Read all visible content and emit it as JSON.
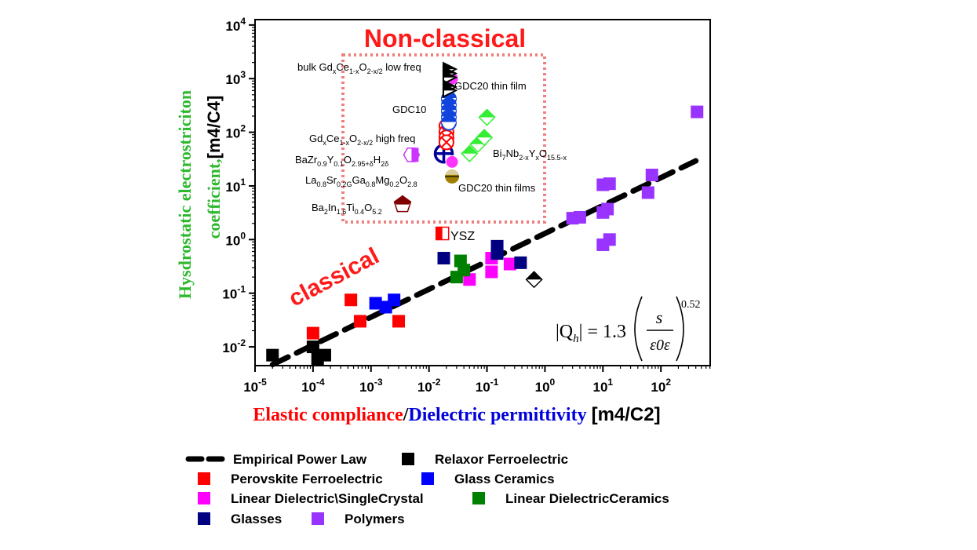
{
  "chart_data": {
    "type": "scatter",
    "x_scale": "log",
    "y_scale": "log",
    "xlim_exp": [
      -5,
      2.85
    ],
    "ylim_exp": [
      -2.35,
      4.1
    ],
    "x_tick_exponents": [
      -5,
      -4,
      -3,
      -2,
      -1,
      0,
      1,
      2
    ],
    "y_tick_exponents": [
      -2,
      -1,
      0,
      1,
      2,
      3,
      4
    ],
    "x_tick_labels": [
      "10-5",
      "10-4",
      "10-3",
      "10-2",
      "10-1",
      "100",
      "101",
      "102"
    ],
    "y_tick_labels": [
      "10-2",
      "10-1",
      "100",
      "101",
      "102",
      "103",
      "104"
    ],
    "xlabel": {
      "part1": "Elastic compliance",
      "slash": "/",
      "part2": "Dielectric permittivity",
      "units": "[m4/C2]"
    },
    "ylabel": {
      "line1": "Hysdrostatic electrostriciton",
      "line2": "coefficient,",
      "units": "[m4/C4]"
    },
    "regions": {
      "nonclassical": "Non-classical",
      "classical": "classical"
    },
    "formula": "|Qh| = 1.3 (s / (ε0 ε))^0.52",
    "formula_parts": {
      "lhs": "|Q",
      "lhs_sub": "h",
      "lhs_close": "| = 1.3",
      "num": "s",
      "den": "ε0ε",
      "exponent": "0.52"
    },
    "power_law": {
      "coefficient": 1.3,
      "exponent": 0.52,
      "x_range": [
        2e-05,
        400
      ]
    },
    "series": [
      {
        "name": "Relaxor Ferroelectric",
        "color": "#000000",
        "points": [
          [
            2e-05,
            0.007
          ],
          [
            0.0001,
            0.01
          ],
          [
            0.00012,
            0.006
          ],
          [
            0.00016,
            0.007
          ]
        ]
      },
      {
        "name": "Perovskite Ferroelectric",
        "color": "#ff0000",
        "points": [
          [
            0.0001,
            0.018
          ],
          [
            0.00045,
            0.075
          ],
          [
            0.00065,
            0.03
          ],
          [
            0.003,
            0.03
          ]
        ]
      },
      {
        "name": "Glass Ceramics",
        "color": "#0000ff",
        "points": [
          [
            0.0012,
            0.065
          ],
          [
            0.0018,
            0.055
          ],
          [
            0.0025,
            0.075
          ]
        ]
      },
      {
        "name": "Linear Dielectric\\SingleCrystal",
        "color": "#ff00ff",
        "points": [
          [
            0.05,
            0.18
          ],
          [
            0.12,
            0.45
          ],
          [
            0.12,
            0.25
          ],
          [
            0.25,
            0.35
          ]
        ]
      },
      {
        "name": "Linear DielectricCeramics",
        "color": "#008000",
        "points": [
          [
            0.03,
            0.2
          ],
          [
            0.035,
            0.4
          ],
          [
            0.04,
            0.27
          ]
        ]
      },
      {
        "name": "Glasses",
        "color": "#000080",
        "points": [
          [
            0.018,
            0.45
          ],
          [
            0.15,
            0.75
          ],
          [
            0.15,
            0.55
          ],
          [
            0.38,
            0.37
          ]
        ]
      },
      {
        "name": "Polymers",
        "color": "#9933ff",
        "points": [
          [
            3.0,
            2.5
          ],
          [
            4.0,
            2.6
          ],
          [
            10,
            10.5
          ],
          [
            13,
            11
          ],
          [
            10,
            3.2
          ],
          [
            12,
            3.7
          ],
          [
            10,
            0.8
          ],
          [
            13,
            1.0
          ],
          [
            60,
            7.5
          ],
          [
            70,
            16
          ],
          [
            420,
            240
          ]
        ]
      }
    ],
    "annotated_points": [
      {
        "label": "Bi7Nb2-xYxO15.5-x",
        "color": "#33ee33",
        "marker": "diamond",
        "points": [
          [
            0.1,
            190
          ],
          [
            0.05,
            40
          ],
          [
            0.07,
            60
          ],
          [
            0.09,
            80
          ]
        ]
      },
      {
        "label": "YSZ",
        "color": "#ff0000",
        "marker": "half-square",
        "points": [
          [
            0.017,
            1.3
          ]
        ]
      },
      {
        "label": "Ba2In1.6Ti0.4O5.2",
        "color": "#800000",
        "marker": "pentagon",
        "points": [
          [
            0.0035,
            4.5
          ]
        ]
      },
      {
        "label": "La0.8Sr0.2Ga0.8Mg0.2O2.8",
        "color": "#a08000",
        "marker": "half-circle",
        "points": [
          [
            0.025,
            15
          ]
        ]
      },
      {
        "label": "BaZr0.9Y0.1O2.95+δH2δ",
        "color": "#cc33ff",
        "marker": "hexagon",
        "points": [
          [
            0.005,
            38
          ]
        ]
      },
      {
        "label": "GDC20 thin films",
        "color": "#000099",
        "marker": "circle-plus",
        "points": [
          [
            0.018,
            40
          ]
        ]
      },
      {
        "label": "GdxCe1-xO2-x/2 high freq",
        "color": "#ff0000",
        "marker": "cross-circle",
        "points": [
          [
            0.02,
            130
          ],
          [
            0.02,
            100
          ],
          [
            0.02,
            80
          ],
          [
            0.02,
            65
          ]
        ]
      },
      {
        "label": "GDC10",
        "color": "#1144dd",
        "marker": "circle-line",
        "points": [
          [
            0.022,
            420
          ],
          [
            0.022,
            320
          ],
          [
            0.022,
            250
          ],
          [
            0.022,
            190
          ],
          [
            0.022,
            150
          ]
        ]
      },
      {
        "label": "GDC20 thin film",
        "color": "#ff33ff",
        "marker": "circle",
        "points": [
          [
            0.025,
            1000
          ],
          [
            0.025,
            28
          ]
        ]
      },
      {
        "label": "bulk GdxCe1-xO2-x/2 low freq",
        "color": "#000000",
        "marker": "triangle",
        "points": [
          [
            0.022,
            1500
          ],
          [
            0.022,
            1250
          ],
          [
            0.022,
            1050
          ],
          [
            0.022,
            700
          ],
          [
            0.022,
            600
          ]
        ]
      },
      {
        "label": "",
        "color": "#000000",
        "marker": "half-diamond",
        "points": [
          [
            0.65,
            0.18
          ]
        ]
      }
    ],
    "point_labels": {
      "bulk": {
        "pre": "bulk Gd",
        "s1": "x",
        "m1": "Ce",
        "s2": "1-x",
        "m2": "O",
        "s3": "2-x/2",
        "post": " low freq"
      },
      "gdc20film": "GDC20 thin film",
      "gdc10": "GDC10",
      "highfreq": {
        "pre": "Gd",
        "s1": "x",
        "m1": "Ce",
        "s2": "1-x",
        "m2": "O",
        "s3": "2-x/2",
        "post": " high freq"
      },
      "bazr": {
        "pre": "BaZr",
        "s1": "0.9",
        "m1": "Y",
        "s2": "0.1",
        "m2": "O",
        "s3": "2.95+δ",
        "m3": "H",
        "s4": "2δ"
      },
      "bi": {
        "pre": "Bi",
        "s1": "7",
        "m1": "Nb",
        "s2": "2-x",
        "m2": "Y",
        "s3": "x",
        "m3": "O",
        "s4": "15.5-x"
      },
      "lsgm": {
        "pre": "La",
        "s1": "0.8",
        "m1": "Sr",
        "s2": "0.2G",
        "m2": "Ga",
        "s3": "0.8",
        "m3": "Mg",
        "s4": "0.2",
        "m4": "O",
        "s5": "2.8"
      },
      "gdc20films": "GDC20 thin films",
      "bain": {
        "pre": "Ba",
        "s1": "2",
        "m1": "In",
        "s2": "1.6",
        "m2": "Ti",
        "s3": "0.4",
        "m3": "O",
        "s4": "5.2"
      },
      "ysz": "YSZ"
    },
    "legend": [
      {
        "label": "Empirical Power Law",
        "kind": "dash",
        "color": "#000000"
      },
      {
        "label": "Relaxor Ferroelectric",
        "kind": "square",
        "color": "#000000"
      },
      {
        "label": "Perovskite Ferroelectric",
        "kind": "square",
        "color": "#ff0000"
      },
      {
        "label": "Glass Ceramics",
        "kind": "square",
        "color": "#0000ff"
      },
      {
        "label": "Linear Dielectric\\SingleCrystal",
        "kind": "square",
        "color": "#ff00ff"
      },
      {
        "label": "Linear DielectricCeramics",
        "kind": "square",
        "color": "#008000"
      },
      {
        "label": "Glasses",
        "kind": "square",
        "color": "#000080"
      },
      {
        "label": "Polymers",
        "kind": "square",
        "color": "#9933ff"
      }
    ]
  },
  "colors": {
    "ylabel_green": "#2db82d",
    "xlabel_red": "#ff0000",
    "xlabel_blue": "#0000dd",
    "region_red": "#ff1a1a",
    "box_pink": "#f08080"
  }
}
